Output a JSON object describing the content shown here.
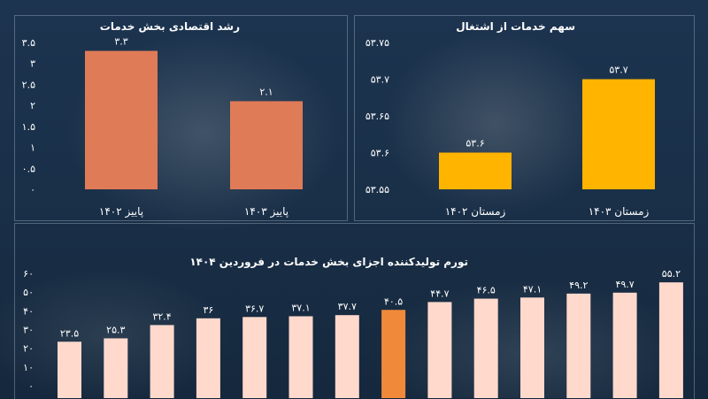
{
  "charts": {
    "growth": {
      "title": "رشد اقتصادی بخش خدمات"
    },
    "employment": {
      "title": "سهم خدمات از اشتغال"
    },
    "inflation": {
      "title": "تورم تولیدکننده اجزای بخش خدمات در فروردین ۱۴۰۴"
    }
  },
  "colors": {
    "bar_primary": "#E07B57",
    "bar_secondary": "#FFB400",
    "bar_light": "#FFD9CC",
    "bar_highlight": "#F08A3A"
  },
  "chart_data": [
    {
      "type": "bar",
      "title": "رشد اقتصادی بخش خدمات",
      "categories": [
        "پاییز ۱۴۰۲",
        "پاییز ۱۴۰۳"
      ],
      "values": [
        3.3,
        2.1
      ],
      "value_labels": [
        "۳.۳",
        "۲.۱"
      ],
      "ylim": [
        0,
        3.5
      ],
      "yticks": [
        0,
        0.5,
        1,
        1.5,
        2,
        2.5,
        3,
        3.5
      ],
      "ytick_labels": [
        "۰",
        "۰.۵",
        "۱",
        "۱.۵",
        "۲",
        "۲.۵",
        "۳",
        "۳.۵"
      ]
    },
    {
      "type": "bar",
      "title": "سهم خدمات از اشتغال",
      "categories": [
        "زمستان ۱۴۰۲",
        "زمستان ۱۴۰۳"
      ],
      "values": [
        53.6,
        53.7
      ],
      "value_labels": [
        "۵۳.۶",
        "۵۳.۷"
      ],
      "ylim": [
        53.55,
        53.75
      ],
      "yticks": [
        53.55,
        53.6,
        53.65,
        53.7,
        53.75
      ],
      "ytick_labels": [
        "۵۳.۵۵",
        "۵۳.۶",
        "۵۳.۶۵",
        "۵۳.۷",
        "۵۳.۷۵"
      ]
    },
    {
      "type": "bar",
      "title": "تورم تولیدکننده اجزای بخش خدمات در فروردین ۱۴۰۴",
      "values": [
        23.5,
        25.3,
        32.4,
        36,
        36.7,
        37.1,
        37.7,
        40.5,
        44.7,
        46.5,
        47.1,
        49.2,
        49.7,
        55.2
      ],
      "value_labels": [
        "۲۳.۵",
        "۲۵.۳",
        "۳۲.۴",
        "۳۶",
        "۳۶.۷",
        "۳۷.۱",
        "۳۷.۷",
        "۴۰.۵",
        "۴۴.۷",
        "۴۶.۵",
        "۴۷.۱",
        "۴۹.۲",
        "۴۹.۷",
        "۵۵.۲"
      ],
      "highlight_index": 7,
      "ylim": [
        0,
        60
      ],
      "yticks": [
        0,
        10,
        20,
        30,
        40,
        50,
        60
      ],
      "ytick_labels": [
        "۰",
        "۱۰",
        "۲۰",
        "۳۰",
        "۴۰",
        "۵۰",
        "۶۰"
      ]
    }
  ]
}
